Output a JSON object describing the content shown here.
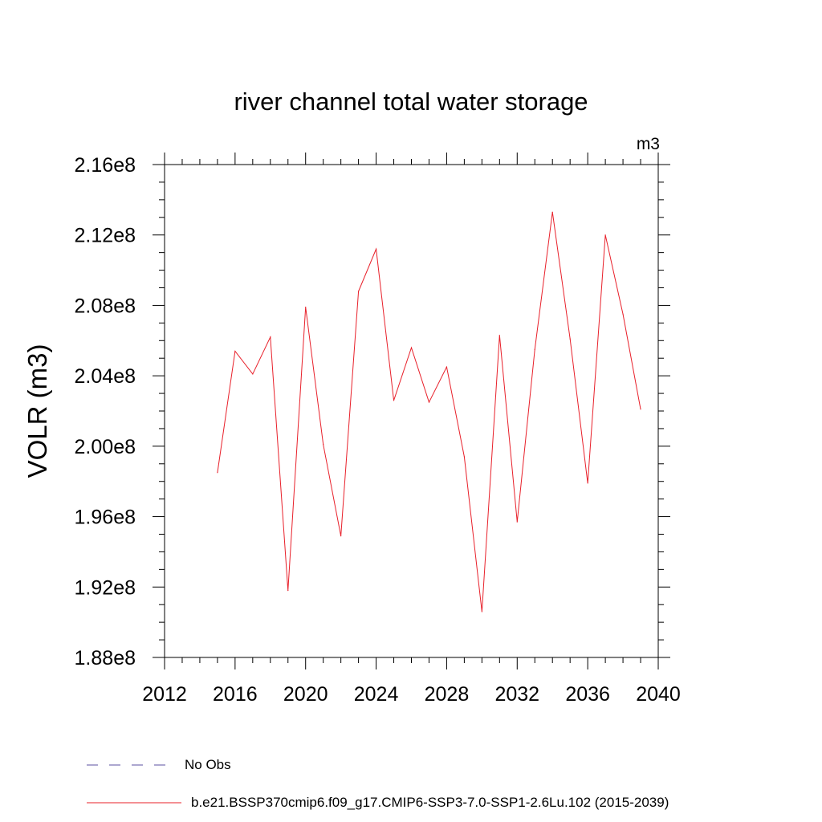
{
  "chart_data": {
    "type": "line",
    "title": "river channel total water storage",
    "units_label": "m3",
    "ylabel": "VOLR  (m3)",
    "xlabel": "",
    "xlim": [
      2012,
      2040
    ],
    "ylim": [
      188000000,
      216000000
    ],
    "x_ticks": [
      2012,
      2016,
      2020,
      2024,
      2028,
      2032,
      2036,
      2040
    ],
    "x_tick_labels": [
      "2012",
      "2016",
      "2020",
      "2024",
      "2028",
      "2032",
      "2036",
      "2040"
    ],
    "y_ticks": [
      188000000,
      192000000,
      196000000,
      200000000,
      204000000,
      208000000,
      212000000,
      216000000
    ],
    "y_tick_labels": [
      "1.88e8",
      "1.92e8",
      "1.96e8",
      "2.00e8",
      "2.04e8",
      "2.08e8",
      "2.12e8",
      "2.16e8"
    ],
    "series": [
      {
        "name": "b.e21.BSSP370cmip6.f09_g17.CMIP6-SSP3-7.0-SSP1-2.6Lu.102 (2015-2039)",
        "color": "#e8202a",
        "x": [
          2015,
          2016,
          2017,
          2018,
          2019,
          2020,
          2021,
          2022,
          2023,
          2024,
          2025,
          2026,
          2027,
          2028,
          2029,
          2030,
          2031,
          2032,
          2033,
          2034,
          2035,
          2036,
          2037,
          2038,
          2039
        ],
        "values": [
          198500000,
          205400000,
          204100000,
          206200000,
          191800000,
          207900000,
          200100000,
          194900000,
          208800000,
          211200000,
          202600000,
          205600000,
          202500000,
          204500000,
          199400000,
          190600000,
          206300000,
          195700000,
          205500000,
          213300000,
          206100000,
          197900000,
          212000000,
          207500000,
          202100000
        ]
      }
    ],
    "legend": [
      {
        "label": "No Obs",
        "style": "dashed",
        "color": "#5b4fa0"
      },
      {
        "label": "b.e21.BSSP370cmip6.f09_g17.CMIP6-SSP3-7.0-SSP1-2.6Lu.102 (2015-2039)",
        "style": "solid",
        "color": "#e8202a"
      }
    ]
  }
}
